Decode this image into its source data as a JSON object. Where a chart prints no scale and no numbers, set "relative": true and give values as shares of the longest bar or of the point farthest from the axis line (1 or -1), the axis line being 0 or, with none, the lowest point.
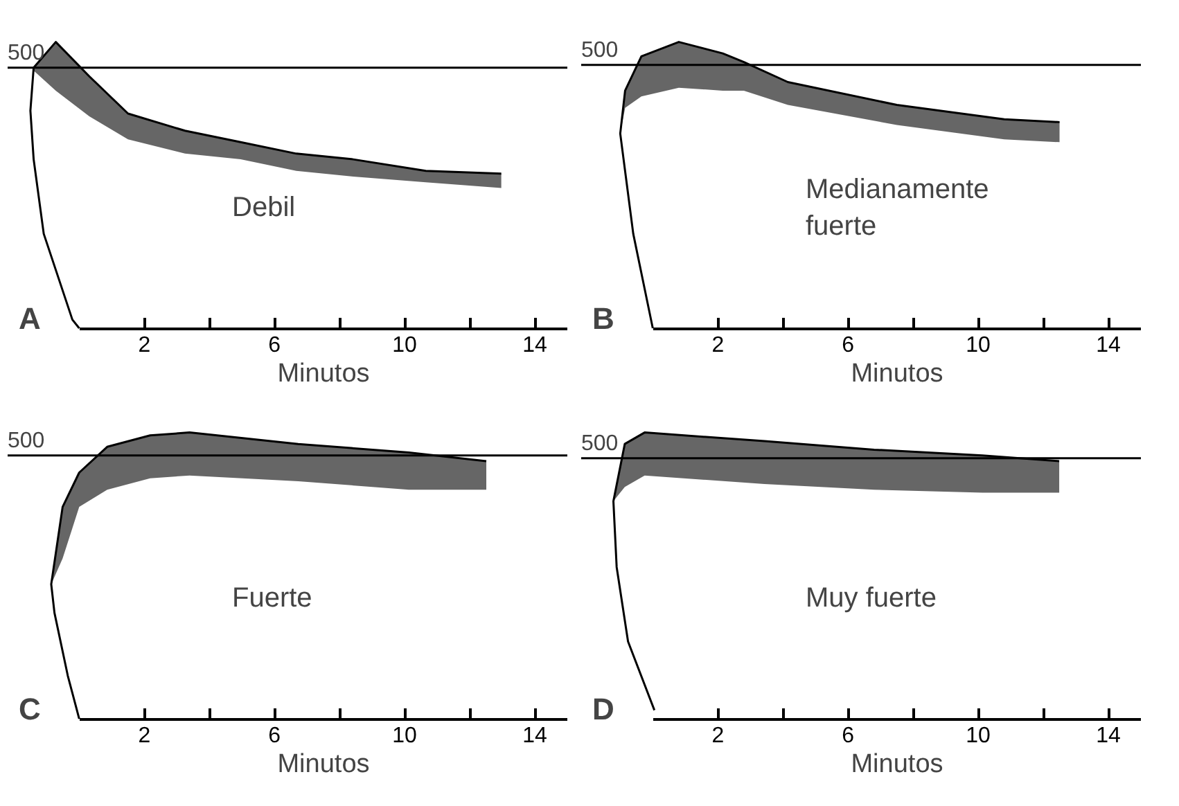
{
  "chart_data": [
    {
      "type": "line",
      "relative": true,
      "xlabel": "Minutos",
      "xlim": [
        -2.2,
        15
      ],
      "xticks": [
        2,
        {
          "value": 4,
          "label": null
        },
        6,
        {
          "value": 8,
          "label": null
        },
        10,
        {
          "value": 12,
          "label": null
        },
        14
      ],
      "grid": false,
      "marker": "none",
      "annotations": [
        "A",
        "Debil",
        "500"
      ],
      "ref_lines": [
        {
          "axis": "y",
          "value": 0.91
        }
      ],
      "x": [
        0,
        -0.21,
        -1.09,
        -1.4,
        -1.5,
        -1.4,
        -0.72,
        0.31,
        1.5,
        3.25,
        4.96,
        6.67,
        8.42,
        10.65,
        12.97
      ],
      "series": [
        {
          "color": "#000000",
          "values": [
            0,
            0.03,
            0.33,
            0.59,
            0.76,
            0.91,
            1.0,
            0.88,
            0.75,
            0.69,
            0.65,
            0.61,
            0.59,
            0.55,
            0.54
          ],
          "lower": [
            0,
            0.03,
            0.33,
            0.59,
            0.76,
            0.9,
            0.83,
            0.74,
            0.66,
            0.61,
            0.59,
            0.55,
            0.53,
            0.51,
            0.49
          ],
          "upper": [
            0,
            0.03,
            0.33,
            0.59,
            0.76,
            0.91,
            1.0,
            0.88,
            0.75,
            0.69,
            0.65,
            0.61,
            0.59,
            0.55,
            0.54
          ]
        }
      ]
    },
    {
      "type": "line",
      "relative": true,
      "xlabel": "Minutos",
      "xlim": [
        -2.2,
        15
      ],
      "xticks": [
        2,
        {
          "value": 4,
          "label": null
        },
        6,
        {
          "value": 8,
          "label": null
        },
        10,
        {
          "value": 12,
          "label": null
        },
        14
      ],
      "grid": false,
      "marker": "none",
      "annotations": [
        "B",
        "Medianamente\nfuerte",
        "500"
      ],
      "ref_lines": [
        {
          "axis": "y",
          "value": 0.92
        }
      ],
      "x": [
        0,
        -0.6,
        -1.0,
        -0.85,
        -0.35,
        0.8,
        2.15,
        2.8,
        4.15,
        7.5,
        10.8,
        12.5
      ],
      "series": [
        {
          "color": "#000000",
          "values": [
            0,
            0.33,
            0.68,
            0.83,
            0.95,
            1.0,
            0.96,
            0.93,
            0.86,
            0.78,
            0.73,
            0.72
          ],
          "lower": [
            0,
            0.33,
            0.68,
            0.77,
            0.81,
            0.84,
            0.83,
            0.83,
            0.78,
            0.71,
            0.66,
            0.65
          ],
          "upper": [
            0,
            0.33,
            0.68,
            0.83,
            0.95,
            1.0,
            0.96,
            0.93,
            0.86,
            0.78,
            0.73,
            0.72
          ]
        }
      ]
    },
    {
      "type": "line",
      "relative": true,
      "xlabel": "Minutos",
      "xlim": [
        -2.2,
        15
      ],
      "xticks": [
        2,
        {
          "value": 4,
          "label": null
        },
        6,
        {
          "value": 8,
          "label": null
        },
        10,
        {
          "value": 12,
          "label": null
        },
        14
      ],
      "grid": false,
      "marker": "none",
      "annotations": [
        "C",
        "Fuerte",
        "500"
      ],
      "ref_lines": [
        {
          "axis": "y",
          "value": 0.92
        }
      ],
      "x": [
        0,
        -0.35,
        -0.76,
        -0.86,
        -0.51,
        0,
        0.86,
        2.18,
        3.39,
        6.73,
        10.13,
        12.51
      ],
      "series": [
        {
          "color": "#000000",
          "values": [
            0,
            0.15,
            0.37,
            0.47,
            0.74,
            0.86,
            0.95,
            0.99,
            1.0,
            0.96,
            0.93,
            0.9
          ],
          "lower": [
            0,
            0.15,
            0.37,
            0.47,
            0.56,
            0.74,
            0.8,
            0.84,
            0.85,
            0.83,
            0.8,
            0.8
          ],
          "upper": [
            0,
            0.15,
            0.37,
            0.47,
            0.74,
            0.86,
            0.95,
            0.99,
            1.0,
            0.96,
            0.93,
            0.9
          ]
        }
      ]
    },
    {
      "type": "line",
      "relative": true,
      "xlabel": "Minutos",
      "xlim": [
        -2.2,
        15
      ],
      "xticks": [
        2,
        {
          "value": 4,
          "label": null
        },
        6,
        {
          "value": 8,
          "label": null
        },
        10,
        {
          "value": 12,
          "label": null
        },
        14
      ],
      "grid": false,
      "marker": "none",
      "annotations": [
        "D",
        "Muy fuerte",
        "500"
      ],
      "ref_lines": [
        {
          "axis": "y",
          "value": 0.91
        }
      ],
      "x": [
        0.05,
        -0.76,
        -1.11,
        -1.21,
        -0.86,
        -0.25,
        3.43,
        6.8,
        10.13,
        12.49
      ],
      "series": [
        {
          "color": "#000000",
          "values": [
            0.03,
            0.27,
            0.53,
            0.76,
            0.96,
            1.0,
            0.97,
            0.94,
            0.92,
            0.9
          ],
          "lower": [
            0.03,
            0.27,
            0.53,
            0.76,
            0.81,
            0.85,
            0.82,
            0.8,
            0.79,
            0.79
          ],
          "upper": [
            0.03,
            0.27,
            0.53,
            0.76,
            0.96,
            1.0,
            0.97,
            0.94,
            0.92,
            0.9
          ]
        }
      ]
    }
  ]
}
